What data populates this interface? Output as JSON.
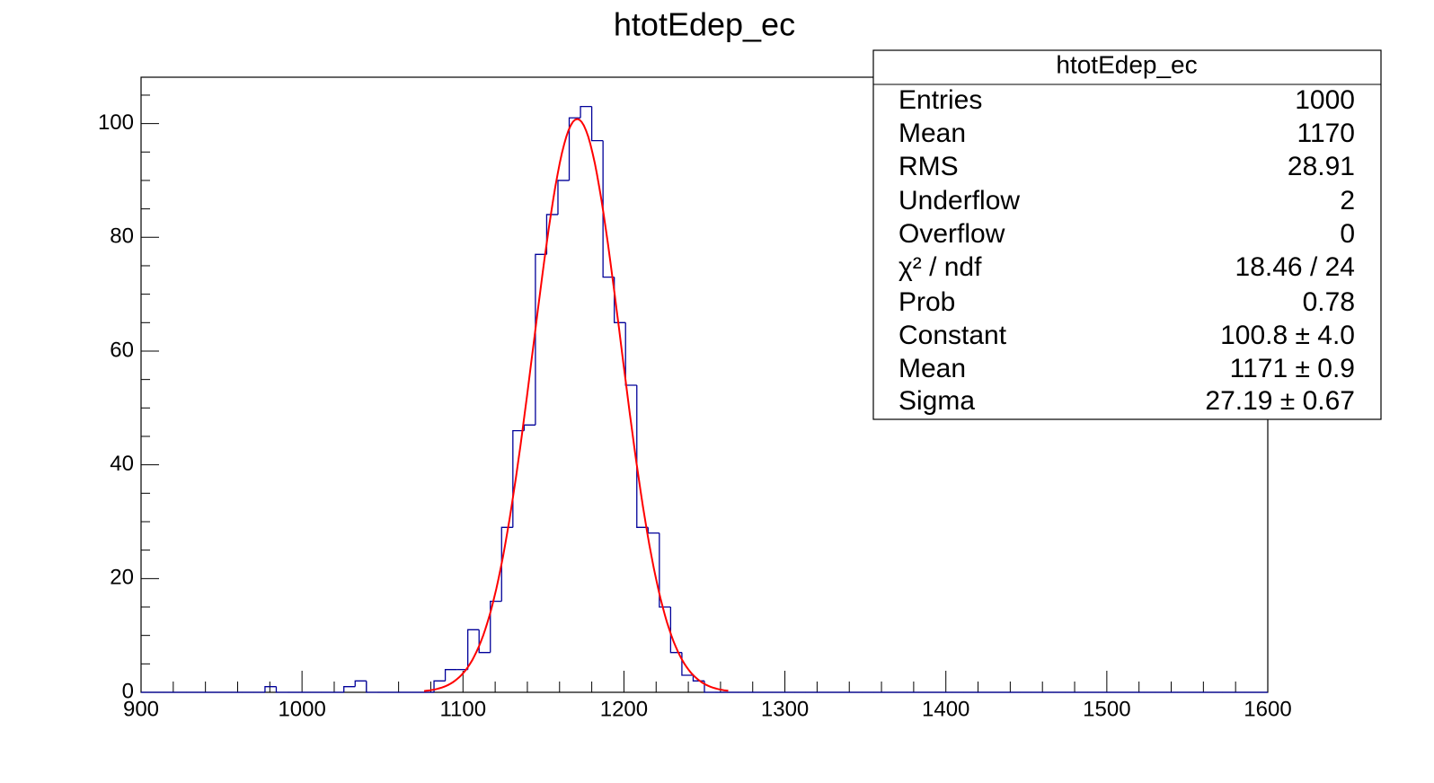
{
  "chart_data": {
    "type": "histogram",
    "title": "htotEdep_ec",
    "bins": [
      900,
      907,
      914,
      921,
      928,
      935,
      942,
      949,
      956,
      963,
      970,
      977,
      984,
      991,
      998,
      1005,
      1012,
      1019,
      1026,
      1033,
      1040,
      1047,
      1054,
      1061,
      1068,
      1075,
      1082,
      1089,
      1096,
      1103,
      1110,
      1117,
      1124,
      1131,
      1138,
      1145,
      1152,
      1159,
      1166,
      1173,
      1180,
      1187,
      1194,
      1201,
      1208,
      1215,
      1222,
      1229,
      1236,
      1243,
      1250,
      1257,
      1264,
      1271,
      1278,
      1285,
      1292,
      1299,
      1306,
      1313,
      1320,
      1327,
      1334,
      1341,
      1348,
      1355,
      1362,
      1369,
      1376,
      1383,
      1390,
      1397,
      1404,
      1411,
      1418,
      1425,
      1432,
      1439,
      1446,
      1453,
      1460,
      1467,
      1474,
      1481,
      1488,
      1495,
      1502,
      1509,
      1516,
      1523,
      1530,
      1537,
      1544,
      1551,
      1558,
      1565,
      1572,
      1579,
      1586,
      1593,
      1600
    ],
    "counts": [
      0,
      0,
      0,
      0,
      0,
      0,
      0,
      0,
      0,
      0,
      0,
      1,
      0,
      0,
      0,
      0,
      0,
      0,
      1,
      2,
      0,
      0,
      0,
      0,
      0,
      0,
      2,
      4,
      4,
      11,
      7,
      16,
      29,
      46,
      47,
      77,
      84,
      90,
      101,
      103,
      97,
      73,
      65,
      54,
      29,
      28,
      15,
      7,
      3,
      2,
      0,
      0,
      0,
      0,
      0,
      0,
      0,
      0,
      0,
      0,
      0,
      0,
      0,
      0,
      0,
      0,
      0,
      0,
      0,
      0,
      0,
      0,
      0,
      0,
      0,
      0,
      0,
      0,
      0,
      0,
      0,
      0,
      0,
      0,
      0,
      0,
      0,
      0,
      0,
      0,
      0,
      0,
      0,
      0,
      0,
      0,
      0,
      0,
      0,
      0
    ],
    "color": "#000099",
    "xlim": [
      900,
      1600
    ],
    "ylim": [
      0,
      108.15
    ],
    "xticks": [
      900,
      1000,
      1100,
      1200,
      1300,
      1400,
      1500,
      1600
    ],
    "yticks": [
      0,
      20,
      40,
      60,
      80,
      100
    ],
    "fit": {
      "color": "#ff0000"
    },
    "stats": {
      "title": "htotEdep_ec",
      "rows": [
        {
          "label": "Entries",
          "value": 1000
        },
        {
          "label": "Mean",
          "value": 1170
        },
        {
          "label": "RMS",
          "value": 28.91
        },
        {
          "label": "Underflow",
          "value": 2
        },
        {
          "label": "Overflow",
          "value": 0
        },
        {
          "label": "χ² / ndf",
          "value": 18.46,
          "ndf": 24,
          "value_label": "18.46 / 24"
        },
        {
          "label": "Prob",
          "value": 0.78
        },
        {
          "label": "Constant",
          "value": 100.8,
          "error": 4.0,
          "value_label": "100.8 ± 4.0"
        },
        {
          "label": "Mean",
          "value": 1171,
          "error": 0.9,
          "value_label": "1171 ± 0.9"
        },
        {
          "label": "Sigma",
          "value": 27.19,
          "error": 0.67,
          "value_label": "27.19 ± 0.67"
        }
      ]
    }
  }
}
